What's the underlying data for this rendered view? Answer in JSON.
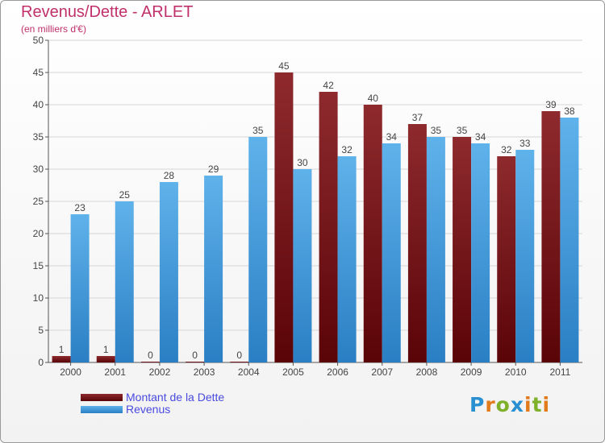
{
  "chart_data": {
    "type": "bar",
    "title": "Revenus/Dette - ARLET",
    "subtitle": "(en milliers d'€)",
    "categories": [
      "2000",
      "2001",
      "2002",
      "2003",
      "2004",
      "2005",
      "2006",
      "2007",
      "2008",
      "2009",
      "2010",
      "2011"
    ],
    "series": [
      {
        "name": "Montant de la Dette",
        "color": "#7a1418",
        "values": [
          1,
          1,
          0,
          0,
          0,
          45,
          42,
          40,
          37,
          35,
          32,
          39
        ]
      },
      {
        "name": "Revenus",
        "color": "#4aa3e0",
        "values": [
          23,
          25,
          28,
          29,
          35,
          30,
          32,
          34,
          35,
          34,
          33,
          38
        ]
      }
    ],
    "ylim": [
      0,
      50
    ],
    "yticks": [
      0,
      5,
      10,
      15,
      20,
      25,
      30,
      35,
      40,
      45,
      50
    ],
    "grid": true,
    "legend": "bottom-left"
  },
  "logo": {
    "letters": [
      "P",
      "r",
      "o",
      "x",
      "i",
      "t",
      "i"
    ]
  }
}
